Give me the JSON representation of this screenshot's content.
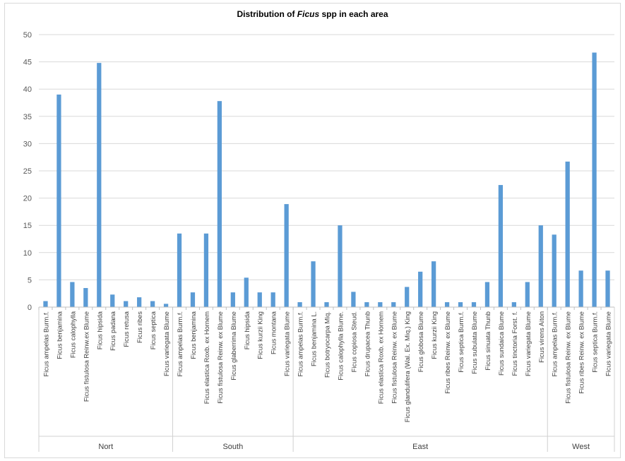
{
  "chart_data": {
    "type": "bar",
    "title": {
      "before": "Distribution of ",
      "italic": "Ficus",
      "after": " spp in each area"
    },
    "ylim": [
      0,
      50
    ],
    "yticks": [
      0,
      5,
      10,
      15,
      20,
      25,
      30,
      35,
      40,
      45,
      50
    ],
    "grid": true,
    "legend": "none",
    "bar_color": "#5b9bd5",
    "groups": [
      {
        "name": "Nort",
        "categories": [
          "Ficus ampelas Burm.f.",
          "Ficus benjamina",
          "Ficus calophylla",
          "Ficus fistulosa Reinw.ex Blume",
          "Ficus hipsida",
          "Ficus padana",
          "Ficus retusa",
          "Ficus ribes",
          "Ficus septica",
          "Ficus variegata Blume"
        ],
        "values": [
          1.1,
          39.0,
          4.6,
          3.5,
          44.8,
          2.3,
          1.1,
          1.8,
          1.1,
          0.6
        ]
      },
      {
        "name": "South",
        "categories": [
          "Ficus ampelas Burm.f.",
          "Ficus benjamina",
          "Ficus elastica Roxb. ex Hornem",
          "Ficus fistulosa Reinw. ex Blume",
          "Ficus glaberrima Blume",
          "Ficus hipsida",
          "Ficus kurzii King",
          "Ficus montana",
          "Ficus variegata Blume"
        ],
        "values": [
          13.5,
          2.7,
          13.5,
          37.8,
          2.7,
          5.4,
          2.7,
          2.7,
          18.9
        ]
      },
      {
        "name": "East",
        "categories": [
          "Ficus ampelas Burm.f.",
          "Ficus benjamina L.",
          "Ficus botryocarpa Miq.",
          "Ficus calophylla Blume.",
          "Ficus copiosa Steud.",
          "Ficus drupacea Thunb",
          "Ficus elastica Roxb. ex Hornem",
          "Ficus fistulosa Reinw. ex Blume",
          "Ficus glandulifera (Wal. Ex. Miq.) King",
          "Ficus globosa Blume",
          "Ficus kurzii King",
          "Ficus ribes Reinw. ex Blume",
          "Ficus septica Burm.f.",
          "Ficus subulata Blume",
          "Ficus sinuata Thunb",
          "Ficus sundaica Blume",
          "Ficus tinctoria Forst. f.",
          "Ficus variegata Blume",
          "Ficus virens Aiton"
        ],
        "values": [
          0.9,
          8.4,
          0.9,
          15.0,
          2.8,
          0.9,
          0.9,
          0.9,
          3.7,
          6.5,
          8.4,
          0.9,
          0.9,
          0.9,
          4.6,
          22.4,
          0.9,
          4.6,
          15.0
        ]
      },
      {
        "name": "West",
        "categories": [
          "Ficus ampelas Burm.f.",
          "Ficus fistulosa Reinw. ex Blume",
          "Ficus ribes Reinw. ex Blume",
          "Ficus septica Burm.f.",
          "Ficus variegata Blume"
        ],
        "values": [
          13.3,
          26.7,
          6.7,
          46.7,
          6.7
        ]
      }
    ]
  }
}
